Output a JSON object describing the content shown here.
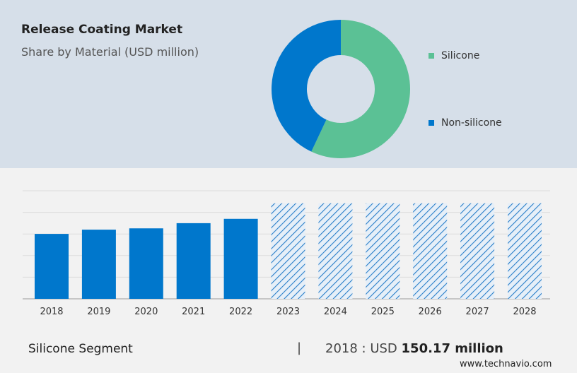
{
  "title": "Release Coating Market",
  "subtitle": "Share by Material (USD million)",
  "colors": {
    "silicone": "#5bc195",
    "non_silicone": "#0077cc",
    "bar": "#0077cc"
  },
  "chart_data": [
    {
      "type": "pie",
      "donut": true,
      "series": [
        {
          "name": "Silicone",
          "share": 57
        },
        {
          "name": "Non-silicone",
          "share": 43
        }
      ],
      "legend": "right"
    },
    {
      "type": "bar",
      "categories": [
        "2018",
        "2019",
        "2020",
        "2021",
        "2022",
        "2023",
        "2024",
        "2025",
        "2026",
        "2027",
        "2028"
      ],
      "values": [
        150.17,
        160,
        163,
        175,
        185,
        221,
        221,
        221,
        221,
        221,
        221
      ],
      "forecast": [
        false,
        false,
        false,
        false,
        false,
        true,
        true,
        true,
        true,
        true,
        true
      ],
      "ylim": [
        0,
        250
      ],
      "grid": true,
      "xlabel": "",
      "ylabel": ""
    }
  ],
  "footer": {
    "segment": "Silicone Segment",
    "separator": "|",
    "value_prefix": "2018 : USD",
    "value": "150.17 million",
    "source": "www.technavio.com"
  }
}
